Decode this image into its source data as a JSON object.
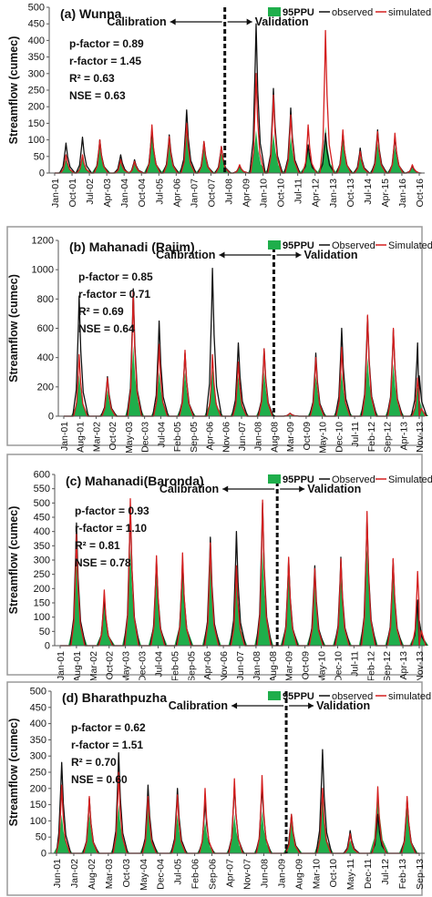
{
  "chart_data": [
    {
      "type": "area",
      "title": "(a) Wunna",
      "ylabel": "Streamflow (cumec)",
      "ylim": [
        0,
        500
      ],
      "yticks": [
        0,
        50,
        100,
        150,
        200,
        250,
        300,
        350,
        400,
        450,
        500
      ],
      "categories": [
        "Jan-01",
        "Oct-01",
        "Jul-02",
        "Apr-03",
        "Jan-04",
        "Oct-04",
        "Jul-05",
        "Apr-06",
        "Jan-07",
        "Oct-07",
        "Jul-08",
        "Apr-09",
        "Jan-10",
        "Oct-10",
        "Jul-11",
        "Apr-12",
        "Jan-13",
        "Oct-13",
        "Jul-14",
        "Apr-15",
        "Jan-16",
        "Oct-16"
      ],
      "legend": [
        "95PPU",
        "observed",
        "simulated"
      ],
      "legend_placement": "top-right",
      "stats": [
        "p-factor = 0.89",
        "r-factor = 1.45",
        "R² = 0.63",
        "NSE = 0.63"
      ],
      "calibration_label": "Calibration",
      "validation_label": "Validation",
      "split": 9.8,
      "frame": false,
      "peak_x": [
        0.65,
        1.6,
        2.6,
        3.8,
        4.6,
        5.6,
        6.6,
        7.6,
        8.6,
        9.6,
        10.65,
        11.6,
        12.6,
        13.6,
        14.6,
        15.6,
        16.6,
        17.6,
        18.6,
        19.6,
        20.6
      ],
      "observed": [
        90,
        108,
        100,
        55,
        40,
        130,
        115,
        190,
        95,
        80,
        22,
        450,
        255,
        196,
        85,
        120,
        120,
        75,
        130,
        110,
        20
      ],
      "simulated": [
        55,
        55,
        100,
        40,
        35,
        145,
        110,
        150,
        95,
        80,
        25,
        300,
        235,
        175,
        145,
        430,
        130,
        65,
        125,
        120,
        25
      ],
      "ppu": [
        40,
        50,
        95,
        40,
        30,
        120,
        100,
        120,
        80,
        60,
        20,
        130,
        120,
        110,
        90,
        140,
        100,
        50,
        90,
        80,
        15
      ]
    },
    {
      "type": "area",
      "title": "(b) Mahanadi (Rajim)",
      "ylabel": "Streamflow (cumec)",
      "ylim": [
        0,
        1200
      ],
      "yticks": [
        0,
        200,
        400,
        600,
        800,
        1000,
        1200
      ],
      "categories": [
        "Jan-01",
        "Aug-01",
        "Mar-02",
        "Oct-02",
        "May-03",
        "Dec-03",
        "Jul-04",
        "Feb-05",
        "Sep-05",
        "Apr-06",
        "Nov-06",
        "Jun-07",
        "Jan-08",
        "Aug-08",
        "Mar-09",
        "Oct-09",
        "May-10",
        "Dec-10",
        "Jul-11",
        "Feb-12",
        "Sep-12",
        "Apr-13",
        "Nov-13"
      ],
      "legend": [
        "95PPU",
        "Observed",
        "Simulated"
      ],
      "legend_placement": "top-right",
      "stats": [
        "p-factor = 0.85",
        "r-factor = 0.71",
        "R² = 0.69",
        "NSE = 0.64"
      ],
      "calibration_label": "Calibration",
      "validation_label": "Validation",
      "split": 13.0,
      "frame": true,
      "peak_x": [
        0.95,
        2.7,
        4.3,
        5.9,
        7.5,
        9.2,
        10.8,
        12.4,
        14.0,
        15.6,
        17.2,
        18.8,
        20.4,
        21.9
      ],
      "observed": [
        820,
        270,
        870,
        650,
        430,
        1010,
        500,
        460,
        20,
        430,
        600,
        680,
        590,
        500
      ],
      "simulated": [
        420,
        260,
        850,
        490,
        450,
        420,
        370,
        460,
        20,
        400,
        470,
        690,
        600,
        260
      ],
      "ppu": [
        280,
        180,
        480,
        300,
        300,
        320,
        280,
        300,
        10,
        280,
        300,
        400,
        360,
        200
      ]
    },
    {
      "type": "area",
      "title": "(c) Mahanadi(Baronda)",
      "ylabel": "Streamflow (cumec)",
      "ylim": [
        0,
        600
      ],
      "yticks": [
        0,
        50,
        100,
        150,
        200,
        250,
        300,
        350,
        400,
        450,
        500,
        550,
        600
      ],
      "categories": [
        "Jan-01",
        "Aug-01",
        "Mar-02",
        "Oct-02",
        "May-03",
        "Dec-03",
        "Jul-04",
        "Feb-05",
        "Sep-05",
        "Apr-06",
        "Nov-06",
        "Jun-07",
        "Jan-08",
        "Aug-08",
        "Mar-09",
        "Oct-09",
        "May-10",
        "Dec-10",
        "Jul-11",
        "Feb-12",
        "Sep-12",
        "Apr-13",
        "Nov-13"
      ],
      "legend": [
        "95PPU",
        "Observed",
        "Simulated"
      ],
      "legend_placement": "top-right",
      "stats": [
        "p-factor = 0.93",
        "r-factor = 1.10",
        "R² = 0.81",
        "NSE = 0.78"
      ],
      "calibration_label": "Calibration",
      "validation_label": "Validation",
      "split": 13.3,
      "frame": true,
      "peak_x": [
        1.0,
        2.7,
        4.3,
        5.9,
        7.5,
        9.2,
        10.8,
        12.4,
        14.0,
        15.6,
        17.2,
        18.8,
        20.4,
        21.9
      ],
      "observed": [
        430,
        170,
        490,
        300,
        300,
        380,
        400,
        500,
        300,
        280,
        310,
        450,
        300,
        160
      ],
      "simulated": [
        390,
        195,
        515,
        315,
        325,
        360,
        280,
        510,
        310,
        270,
        305,
        470,
        305,
        260
      ],
      "ppu": [
        300,
        160,
        340,
        260,
        280,
        300,
        260,
        330,
        260,
        220,
        240,
        340,
        240,
        160
      ]
    },
    {
      "type": "area",
      "title": "(d) Bharathpuzha",
      "ylabel": "Streamflow (cumec)",
      "ylim": [
        0,
        500
      ],
      "yticks": [
        0,
        50,
        100,
        150,
        200,
        250,
        300,
        350,
        400,
        450,
        500
      ],
      "categories": [
        "Jun-01",
        "Jan-02",
        "Aug-02",
        "Mar-03",
        "Oct-03",
        "May-04",
        "Dec-04",
        "Jul-05",
        "Feb-06",
        "Sep-06",
        "Apr-07",
        "Nov-07",
        "Jun-08",
        "Jan-09",
        "Aug-09",
        "Mar-10",
        "Oct-10",
        "May-11",
        "Dec-11",
        "Jul-12",
        "Feb-13",
        "Sep-13"
      ],
      "legend": [
        "95PPU",
        "observed",
        "simulated"
      ],
      "legend_placement": "top-right",
      "stats": [
        "p-factor = 0.62",
        "r-factor = 1.51",
        "R² = 0.70",
        "NSE = 0.60"
      ],
      "calibration_label": "Calibration",
      "validation_label": "Validation",
      "split": 13.3,
      "frame": false,
      "peak_x": [
        0.3,
        1.9,
        3.6,
        5.3,
        7.0,
        8.6,
        10.3,
        11.9,
        13.6,
        15.4,
        17.0,
        18.6,
        20.3
      ],
      "observed": [
        280,
        170,
        310,
        210,
        200,
        160,
        210,
        210,
        120,
        320,
        70,
        120,
        170
      ],
      "simulated": [
        210,
        175,
        250,
        175,
        180,
        200,
        230,
        240,
        120,
        200,
        60,
        205,
        175
      ],
      "ppu": [
        120,
        120,
        150,
        160,
        120,
        100,
        120,
        130,
        120,
        180,
        40,
        210,
        150
      ]
    }
  ]
}
